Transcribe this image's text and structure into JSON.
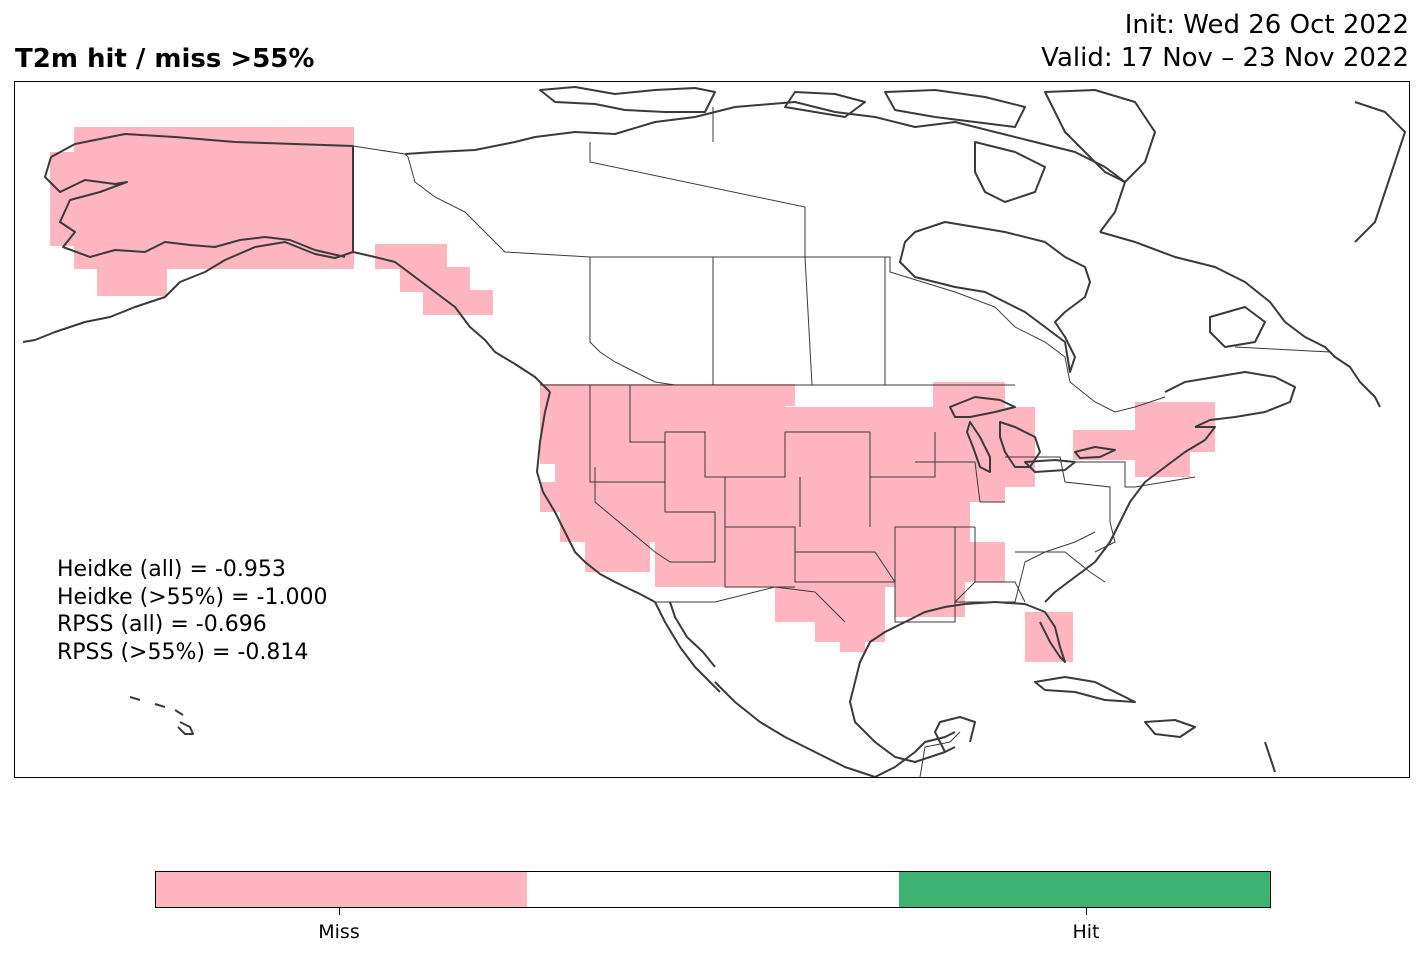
{
  "header": {
    "title": "T2m hit / miss  >55%",
    "init": "Init: Wed 26 Oct 2022",
    "valid": "Valid: 17 Nov – 23 Nov 2022"
  },
  "stats": {
    "heidke_all": "Heidke (all) = -0.953",
    "heidke_55": "Heidke (>55%) = -1.000",
    "rpss_all": "RPSS (all) = -0.696",
    "rpss_55": "RPSS (>55%) = -0.814"
  },
  "colors": {
    "miss": "#ffb6c1",
    "neutral": "#ffffff",
    "hit": "#3cb371",
    "coast": "#3a3a3a"
  },
  "colorbar": {
    "segments": [
      "miss",
      "neutral",
      "hit"
    ],
    "ticks": [
      "Miss",
      "Hit"
    ]
  },
  "map_regions": {
    "miss": [
      "Alaska",
      "Yukon coast",
      "Southeast Alaska panhandle",
      "Western United States",
      "Central United States",
      "Upper Midwest",
      "Great Lakes",
      "Southern Plains",
      "Gulf Coast",
      "Northeast United States",
      "South Florida"
    ],
    "neutral": [
      "Canada interior",
      "Ohio Valley",
      "Southeast United States",
      "Mexico",
      "Arctic islands"
    ],
    "hit": []
  }
}
